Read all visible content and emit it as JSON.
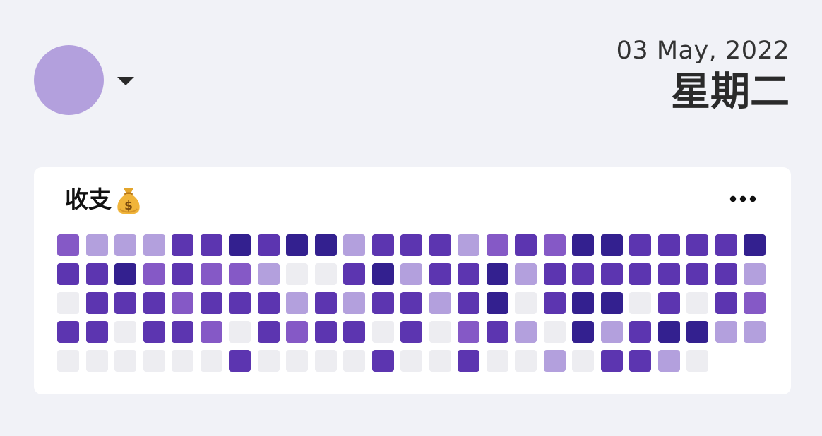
{
  "header": {
    "avatar_color": "#b3a0dd",
    "dropdown_icon": "caret-down-icon",
    "date": "03 May, 2022",
    "weekday": "星期二"
  },
  "card": {
    "title": "收支",
    "title_icon": "money-bag-icon",
    "menu_icon": "more-horizontal-icon",
    "level_colors": [
      "#ededf1",
      "#b3a0dd",
      "#8559c6",
      "#5c35b0",
      "#33208f"
    ],
    "rows": [
      [
        2,
        1,
        1,
        1,
        3,
        3,
        4,
        3,
        4,
        4,
        1,
        3,
        3,
        3,
        1,
        2,
        3,
        2,
        4,
        4,
        3,
        3,
        3,
        3,
        4
      ],
      [
        3,
        3,
        4,
        2,
        3,
        2,
        2,
        1,
        0,
        0,
        3,
        4,
        1,
        3,
        3,
        4,
        1,
        3,
        3,
        3,
        3,
        3,
        3,
        3,
        1
      ],
      [
        0,
        3,
        3,
        3,
        2,
        3,
        3,
        3,
        1,
        3,
        1,
        3,
        3,
        1,
        3,
        4,
        0,
        3,
        4,
        4,
        0,
        3,
        0,
        3,
        2
      ],
      [
        3,
        3,
        0,
        3,
        3,
        2,
        0,
        3,
        2,
        3,
        3,
        0,
        3,
        0,
        2,
        3,
        1,
        0,
        4,
        1,
        3,
        4,
        4,
        1,
        1
      ],
      [
        0,
        0,
        0,
        0,
        0,
        0,
        3,
        0,
        0,
        0,
        0,
        3,
        0,
        0,
        3,
        0,
        0,
        1,
        0,
        3,
        3,
        1,
        0
      ]
    ]
  }
}
